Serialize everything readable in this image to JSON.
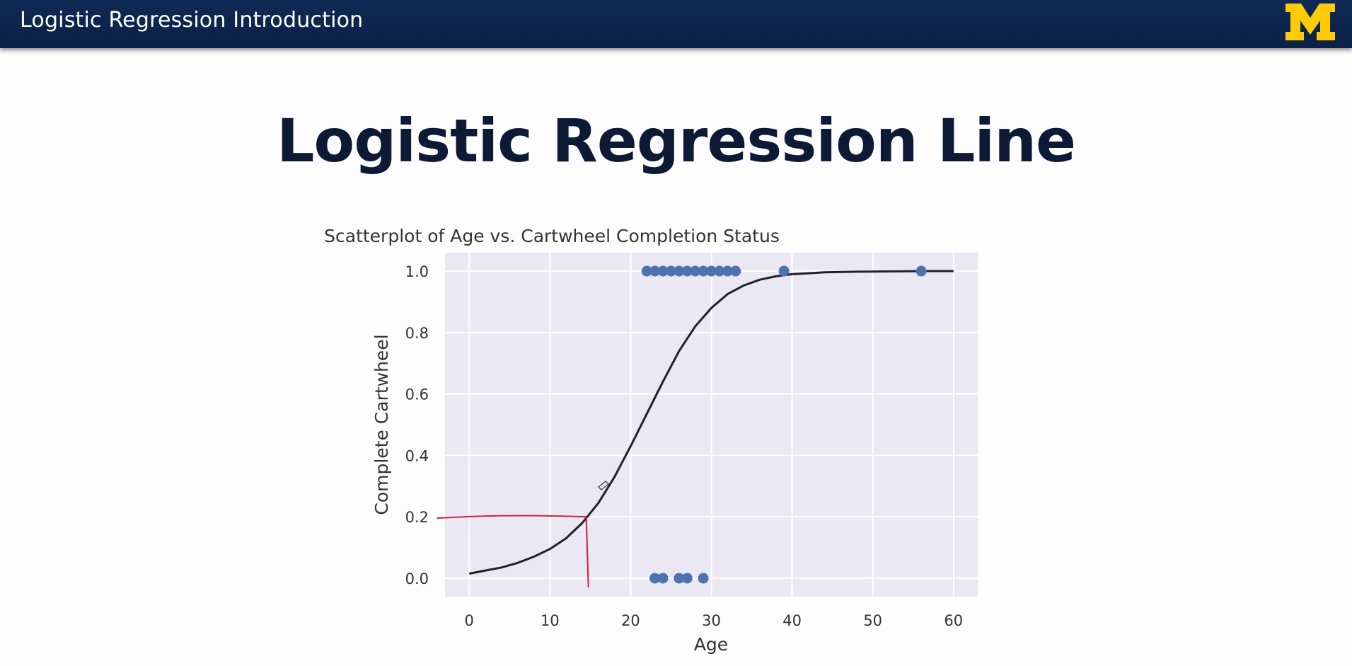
{
  "header": {
    "title": "Logistic Regression Introduction",
    "logo_text": "M",
    "logo_color": "#ffcb05"
  },
  "slide": {
    "title": "Logistic Regression Line"
  },
  "chart_data": {
    "type": "scatter",
    "title": "Scatterplot of Age vs. Cartwheel Completion Status",
    "xlabel": "Age",
    "ylabel": "Complete Cartwheel",
    "xlim": [
      -3,
      63
    ],
    "ylim": [
      -0.06,
      1.06
    ],
    "xticks": [
      0,
      10,
      20,
      30,
      40,
      50,
      60
    ],
    "yticks": [
      0.0,
      0.2,
      0.4,
      0.6,
      0.8,
      1.0
    ],
    "xtick_labels": [
      "0",
      "10",
      "20",
      "30",
      "40",
      "50",
      "60"
    ],
    "ytick_labels": [
      "0.0",
      "0.2",
      "0.4",
      "0.6",
      "0.8",
      "1.0"
    ],
    "grid": true,
    "background_color": "#eae8f3",
    "point_color": "#4c72b0",
    "points": {
      "x": [
        22,
        23,
        24,
        25,
        26,
        27,
        28,
        29,
        30,
        31,
        32,
        33,
        39,
        56,
        23,
        24,
        26,
        27,
        29
      ],
      "y": [
        1,
        1,
        1,
        1,
        1,
        1,
        1,
        1,
        1,
        1,
        1,
        1,
        1,
        1,
        0,
        0,
        0,
        0,
        0
      ]
    },
    "curve": {
      "type": "logistic",
      "color": "#222222",
      "x": [
        0,
        2,
        4,
        6,
        8,
        10,
        12,
        14,
        16,
        18,
        20,
        22,
        24,
        26,
        28,
        30,
        32,
        34,
        36,
        38,
        40,
        44,
        48,
        52,
        56,
        60
      ],
      "y": [
        0.015,
        0.025,
        0.035,
        0.05,
        0.07,
        0.095,
        0.13,
        0.18,
        0.245,
        0.33,
        0.43,
        0.535,
        0.64,
        0.74,
        0.82,
        0.88,
        0.925,
        0.953,
        0.972,
        0.983,
        0.99,
        0.996,
        0.998,
        0.999,
        1.0,
        1.0
      ]
    },
    "annotation": {
      "color": "#cc1f3f",
      "horizontal": {
        "x": [
          -4,
          14.5
        ],
        "y": 0.2
      },
      "vertical": {
        "x": 14.5,
        "y": [
          0.2,
          -0.03
        ]
      }
    }
  }
}
